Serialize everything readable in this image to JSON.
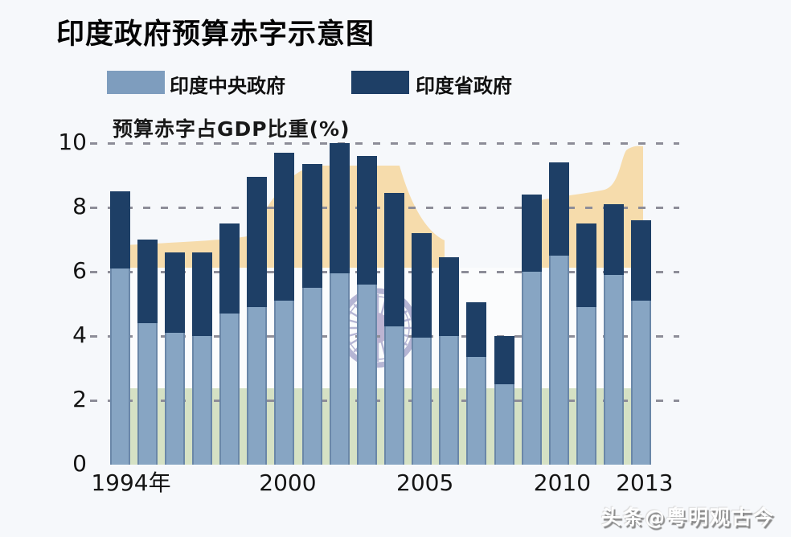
{
  "title": "印度政府预算赤字示意图",
  "subtitle": "预算赤字占GDP比重(%)",
  "watermark": "头条@粤明观古今",
  "legend": {
    "central": {
      "label": "印度中央政府",
      "color": "#7e9dbe"
    },
    "state": {
      "label": "印度省政府",
      "color": "#1e3f66"
    }
  },
  "y_axis": {
    "ticks": [
      10,
      8,
      6,
      4,
      2,
      0
    ]
  },
  "x_axis": {
    "labels": [
      {
        "text": "1994年",
        "bar_index": 0
      },
      {
        "text": "2000",
        "bar_index": 6
      },
      {
        "text": "2005",
        "bar_index": 11
      },
      {
        "text": "2010",
        "bar_index": 16
      },
      {
        "text": "2013",
        "bar_index": 19
      }
    ]
  },
  "colors": {
    "background": "#f6f8fb",
    "central_bar": "#87a5c3",
    "state_bar": "#1e3f66",
    "flag_saffron": "#f6dcac",
    "flag_green": "#d5e1c4",
    "chakra": "#a9a9cd",
    "chakra_hub": "#b2a8cb",
    "gridline": "#8d8d98",
    "text": "#111111"
  },
  "chart_data": {
    "type": "bar",
    "stacked": true,
    "title": "印度政府预算赤字示意图",
    "subtitle_unit": "预算赤字占GDP比重(%)",
    "xlabel": "",
    "ylabel": "预算赤字占GDP比重(%)",
    "ylim": [
      0,
      10
    ],
    "grid": "horizontal-dashed",
    "legend_position": "top",
    "background_art": "india-flag-with-ashoka-chakra",
    "categories": [
      1994,
      1995,
      1996,
      1997,
      1998,
      1999,
      2000,
      2001,
      2002,
      2003,
      2004,
      2005,
      2006,
      2007,
      2008,
      2009,
      2010,
      2011,
      2012,
      2013
    ],
    "series": [
      {
        "name": "印度中央政府",
        "color": "#87a5c3",
        "values": [
          6.1,
          4.4,
          4.1,
          4.0,
          4.7,
          4.9,
          5.1,
          5.5,
          5.95,
          5.6,
          4.3,
          3.95,
          4.0,
          3.35,
          2.5,
          6.0,
          6.5,
          4.9,
          5.9,
          5.1
        ]
      },
      {
        "name": "印度省政府",
        "color": "#1e3f66",
        "values": [
          2.4,
          2.6,
          2.5,
          2.6,
          2.8,
          4.05,
          4.6,
          3.85,
          4.05,
          4.0,
          4.15,
          3.25,
          2.45,
          1.7,
          1.5,
          2.4,
          2.9,
          2.6,
          2.2,
          2.5
        ]
      }
    ],
    "totals": [
      8.5,
      7.0,
      6.6,
      6.6,
      7.5,
      8.95,
      9.7,
      9.35,
      10.0,
      9.6,
      8.45,
      7.2,
      6.45,
      5.05,
      4.0,
      8.4,
      9.4,
      7.5,
      8.1,
      7.6
    ]
  }
}
